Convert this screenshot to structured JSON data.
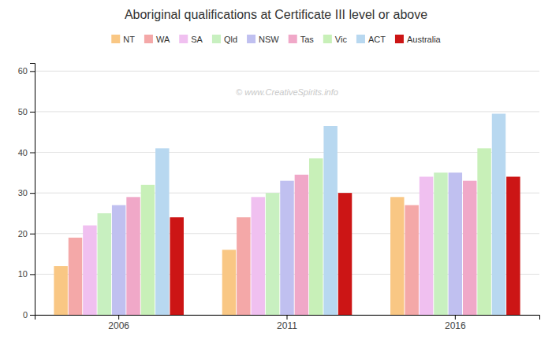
{
  "chart_data": {
    "type": "bar",
    "title": "Aboriginal qualifications at Certificate III level or above",
    "categories": [
      "2006",
      "2011",
      "2016"
    ],
    "series": [
      {
        "name": "NT",
        "color": "#f9c784",
        "values": [
          12,
          16,
          29
        ]
      },
      {
        "name": "WA",
        "color": "#f4a8a8",
        "values": [
          19,
          24,
          27
        ]
      },
      {
        "name": "SA",
        "color": "#f0c0f0",
        "values": [
          22,
          29,
          34
        ]
      },
      {
        "name": "Qld",
        "color": "#c8f0c0",
        "values": [
          25,
          30,
          35
        ]
      },
      {
        "name": "NSW",
        "color": "#c0c0f0",
        "values": [
          27,
          33,
          35
        ]
      },
      {
        "name": "Tas",
        "color": "#f0a8c8",
        "values": [
          29,
          34.5,
          33
        ]
      },
      {
        "name": "Vic",
        "color": "#c8f0b8",
        "values": [
          32,
          38.5,
          41
        ]
      },
      {
        "name": "ACT",
        "color": "#b8d8f0",
        "values": [
          41,
          46.5,
          49.5
        ]
      },
      {
        "name": "Australia",
        "color": "#cc1515",
        "values": [
          24,
          30,
          34
        ]
      }
    ],
    "annotations": [
      "© www.CreativeSpirits.info"
    ],
    "ylim": [
      0,
      62
    ],
    "yticks": [
      0,
      10,
      20,
      30,
      40,
      50,
      60
    ],
    "grid": true,
    "legend": "top"
  }
}
